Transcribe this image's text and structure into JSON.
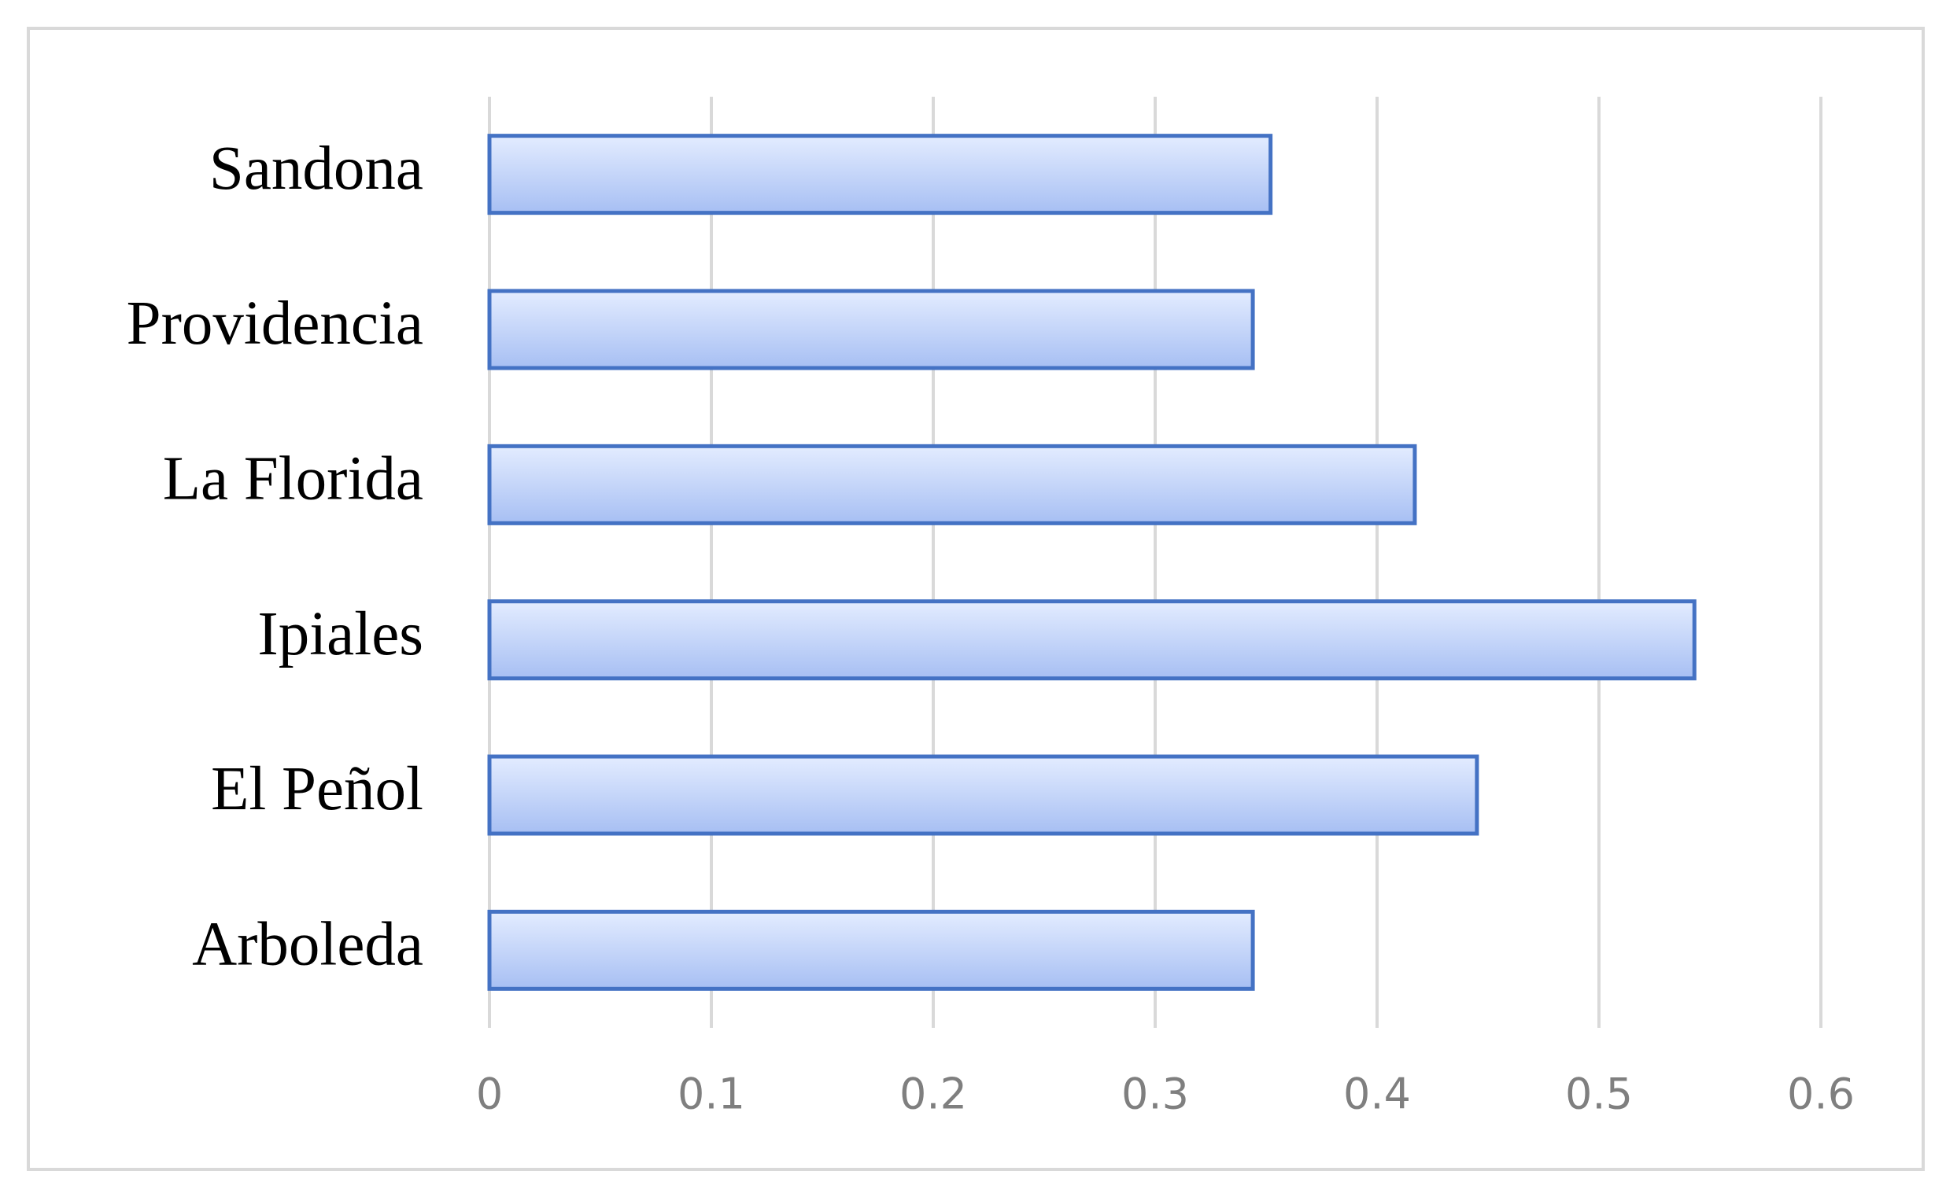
{
  "chart_data": {
    "type": "bar",
    "orientation": "horizontal",
    "categories": [
      "Sandona",
      "Providencia",
      "La Florida",
      "Ipiales",
      "El Peñol",
      "Arboleda"
    ],
    "values": [
      0.352,
      0.344,
      0.417,
      0.543,
      0.445,
      0.344
    ],
    "color": "#4472c4",
    "xlim": [
      0,
      0.6
    ],
    "xticks": [
      0,
      0.1,
      0.2,
      0.3,
      0.4,
      0.5,
      0.6
    ],
    "grid": true
  }
}
